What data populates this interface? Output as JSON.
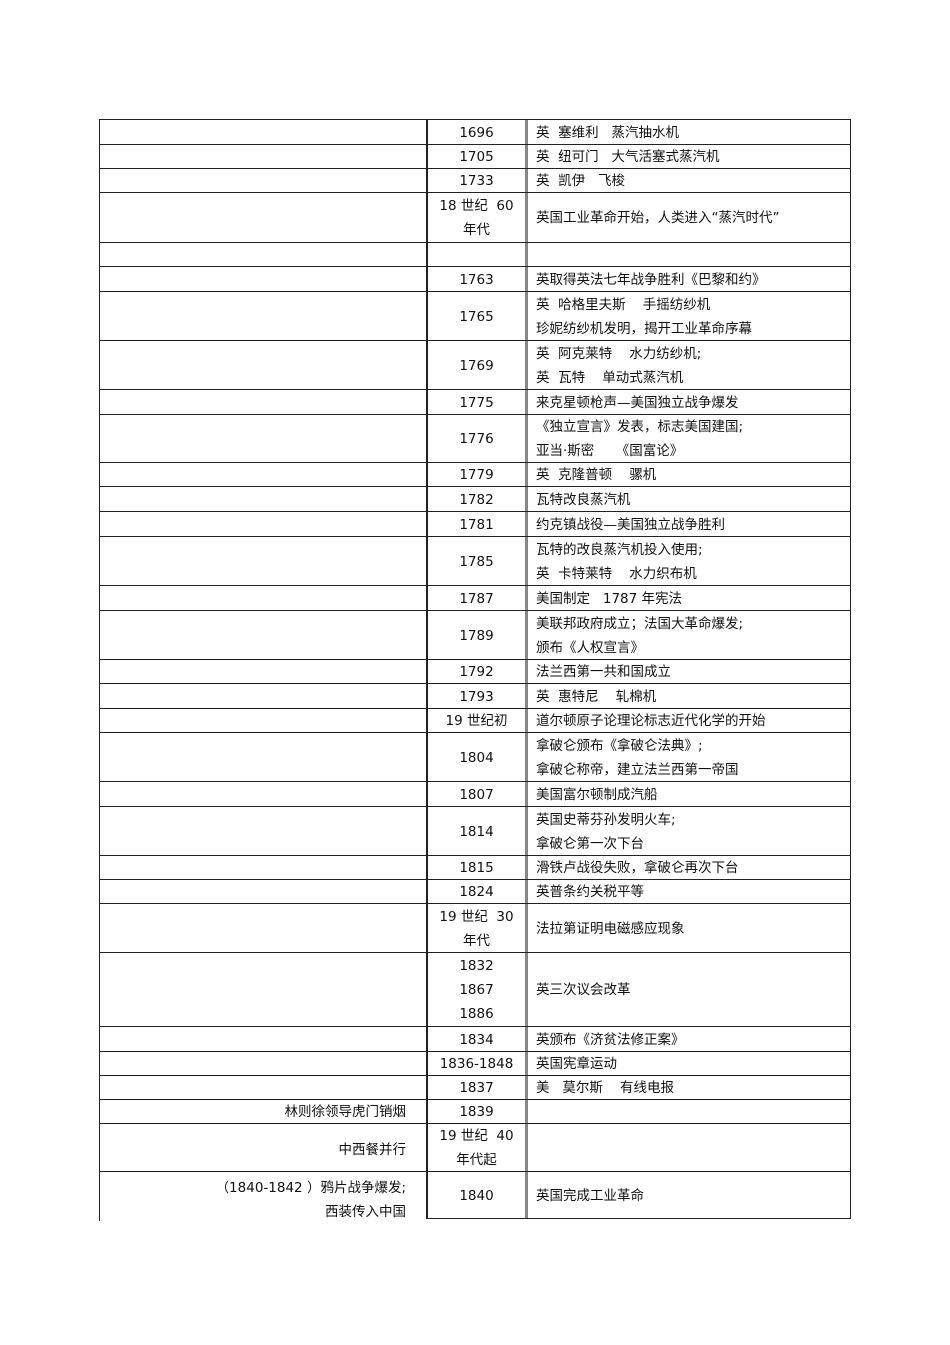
{
  "rows": [
    {
      "left": "",
      "year": [
        "1696"
      ],
      "event": [
        "英  塞维利   蒸汽抽水机"
      ]
    },
    {
      "left": "",
      "year": [
        "1705"
      ],
      "event": [
        "英  纽可门   大气活塞式蒸汽机"
      ]
    },
    {
      "left": "",
      "year": [
        "1733"
      ],
      "event": [
        "英  凯伊   飞梭"
      ]
    },
    {
      "left": "",
      "year": [
        "18 世纪  60",
        "年代"
      ],
      "event": [
        "英国工业革命开始，人类进入“蒸汽时代”"
      ]
    },
    {
      "left": "",
      "year": [],
      "event": []
    },
    {
      "left": "",
      "year": [
        "1763"
      ],
      "event": [
        "英取得英法七年战争胜利《巴黎和约》"
      ]
    },
    {
      "left": "",
      "year": [
        "1765"
      ],
      "event": [
        "英  哈格里夫斯    手摇纺纱机",
        "珍妮纺纱机发明，揭开工业革命序幕"
      ]
    },
    {
      "left": "",
      "year": [
        "1769"
      ],
      "event": [
        "英  阿克莱特    水力纺纱机;",
        "英  瓦特    单动式蒸汽机"
      ]
    },
    {
      "left": "",
      "year": [
        "1775"
      ],
      "event": [
        "来克星顿枪声—美国独立战争爆发"
      ]
    },
    {
      "left": "",
      "year": [
        "1776"
      ],
      "event": [
        "《独立宣言》发表，标志美国建国;",
        "亚当·斯密     《国富论》"
      ]
    },
    {
      "left": "",
      "year": [
        "1779"
      ],
      "event": [
        "英  克隆普顿    骡机"
      ]
    },
    {
      "left": "",
      "year": [
        "1782"
      ],
      "event": [
        "瓦特改良蒸汽机"
      ]
    },
    {
      "left": "",
      "year": [
        "1781"
      ],
      "event": [
        "约克镇战役—美国独立战争胜利"
      ]
    },
    {
      "left": "",
      "year": [
        "1785"
      ],
      "event": [
        "瓦特的改良蒸汽机投入使用;",
        "英  卡特莱特    水力织布机"
      ]
    },
    {
      "left": "",
      "year": [
        "1787"
      ],
      "event": [
        "美国制定   1787 年宪法"
      ]
    },
    {
      "left": "",
      "year": [
        "1789"
      ],
      "event": [
        "美联邦政府成立；法国大革命爆发;",
        "颁布《人权宣言》"
      ]
    },
    {
      "left": "",
      "year": [
        "1792"
      ],
      "event": [
        "法兰西第一共和国成立"
      ]
    },
    {
      "left": "",
      "year": [
        "1793"
      ],
      "event": [
        "英  惠特尼    轧棉机"
      ]
    },
    {
      "left": "",
      "year": [
        "19 世纪初"
      ],
      "event": [
        "道尔顿原子论理论标志近代化学的开始"
      ]
    },
    {
      "left": "",
      "year": [
        "1804"
      ],
      "event": [
        "拿破仑颁布《拿破仑法典》;",
        "拿破仑称帝，建立法兰西第一帝国"
      ]
    },
    {
      "left": "",
      "year": [
        "1807"
      ],
      "event": [
        "美国富尔顿制成汽船"
      ]
    },
    {
      "left": "",
      "year": [
        "1814"
      ],
      "event": [
        "英国史蒂芬孙发明火车;",
        "拿破仑第一次下台"
      ]
    },
    {
      "left": "",
      "year": [
        "1815"
      ],
      "event": [
        "滑铁卢战役失败，拿破仑再次下台"
      ]
    },
    {
      "left": "",
      "year": [
        "1824"
      ],
      "event": [
        "英普条约关税平等"
      ]
    },
    {
      "left": "",
      "year": [
        "19 世纪  30",
        "年代"
      ],
      "event": [
        "法拉第证明电磁感应现象"
      ]
    },
    {
      "left": "",
      "year": [
        "1832",
        "1867",
        "1886"
      ],
      "event": [
        "英三次议会改革"
      ]
    },
    {
      "left": "",
      "year": [
        "1834"
      ],
      "event": [
        "英颁布《济贫法修正案》"
      ]
    },
    {
      "left": "",
      "year": [
        "1836-1848"
      ],
      "event": [
        "英国宪章运动"
      ]
    },
    {
      "left": "",
      "year": [
        "1837"
      ],
      "event": [
        "美   莫尔斯    有线电报"
      ]
    },
    {
      "left": "林则徐领导虎门销烟",
      "year": [
        "1839"
      ],
      "event": []
    },
    {
      "left": "",
      "year": [
        "19 世纪  40",
        "年代起"
      ],
      "event": []
    },
    {
      "left": "",
      "year": [
        "1840"
      ],
      "event": [
        "英国完成工业革命"
      ]
    }
  ],
  "final_left": [
    "中西餐并行",
    "（1840-1842 ）鸦片战争爆发;",
    "西装传入中国"
  ]
}
